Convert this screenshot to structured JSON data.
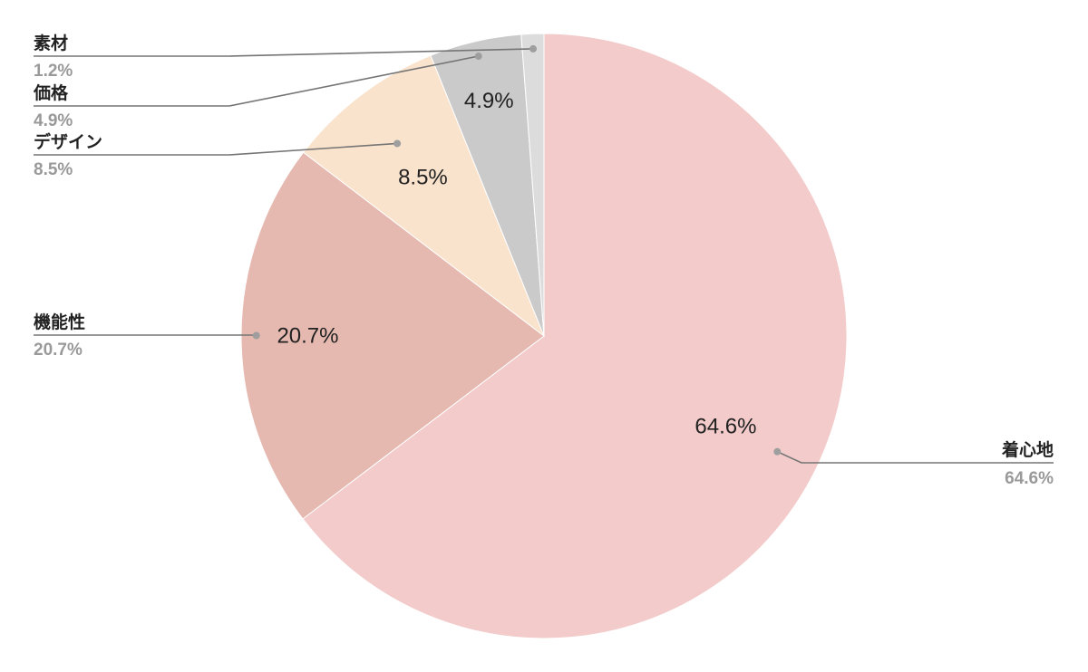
{
  "chart_data": {
    "type": "pie",
    "title": "",
    "start_angle_deg": 0,
    "direction": "clockwise",
    "slices": [
      {
        "label": "着心地",
        "value": 64.6,
        "pct_label": "64.6%",
        "color": "#f2cbca",
        "inside_label": "64.6%"
      },
      {
        "label": "機能性",
        "value": 20.7,
        "pct_label": "20.7%",
        "color": "#e5b8b0",
        "inside_label": "20.7%"
      },
      {
        "label": "デザイン",
        "value": 8.5,
        "pct_label": "8.5%",
        "color": "#fae3cc",
        "inside_label": "8.5%"
      },
      {
        "label": "価格",
        "value": 4.9,
        "pct_label": "4.9%",
        "color": "#cacaca",
        "inside_label": "4.9%"
      },
      {
        "label": "素材",
        "value": 1.2,
        "pct_label": "1.2%",
        "color": "#dcdcdc",
        "inside_label": ""
      }
    ],
    "legend": "callouts"
  }
}
